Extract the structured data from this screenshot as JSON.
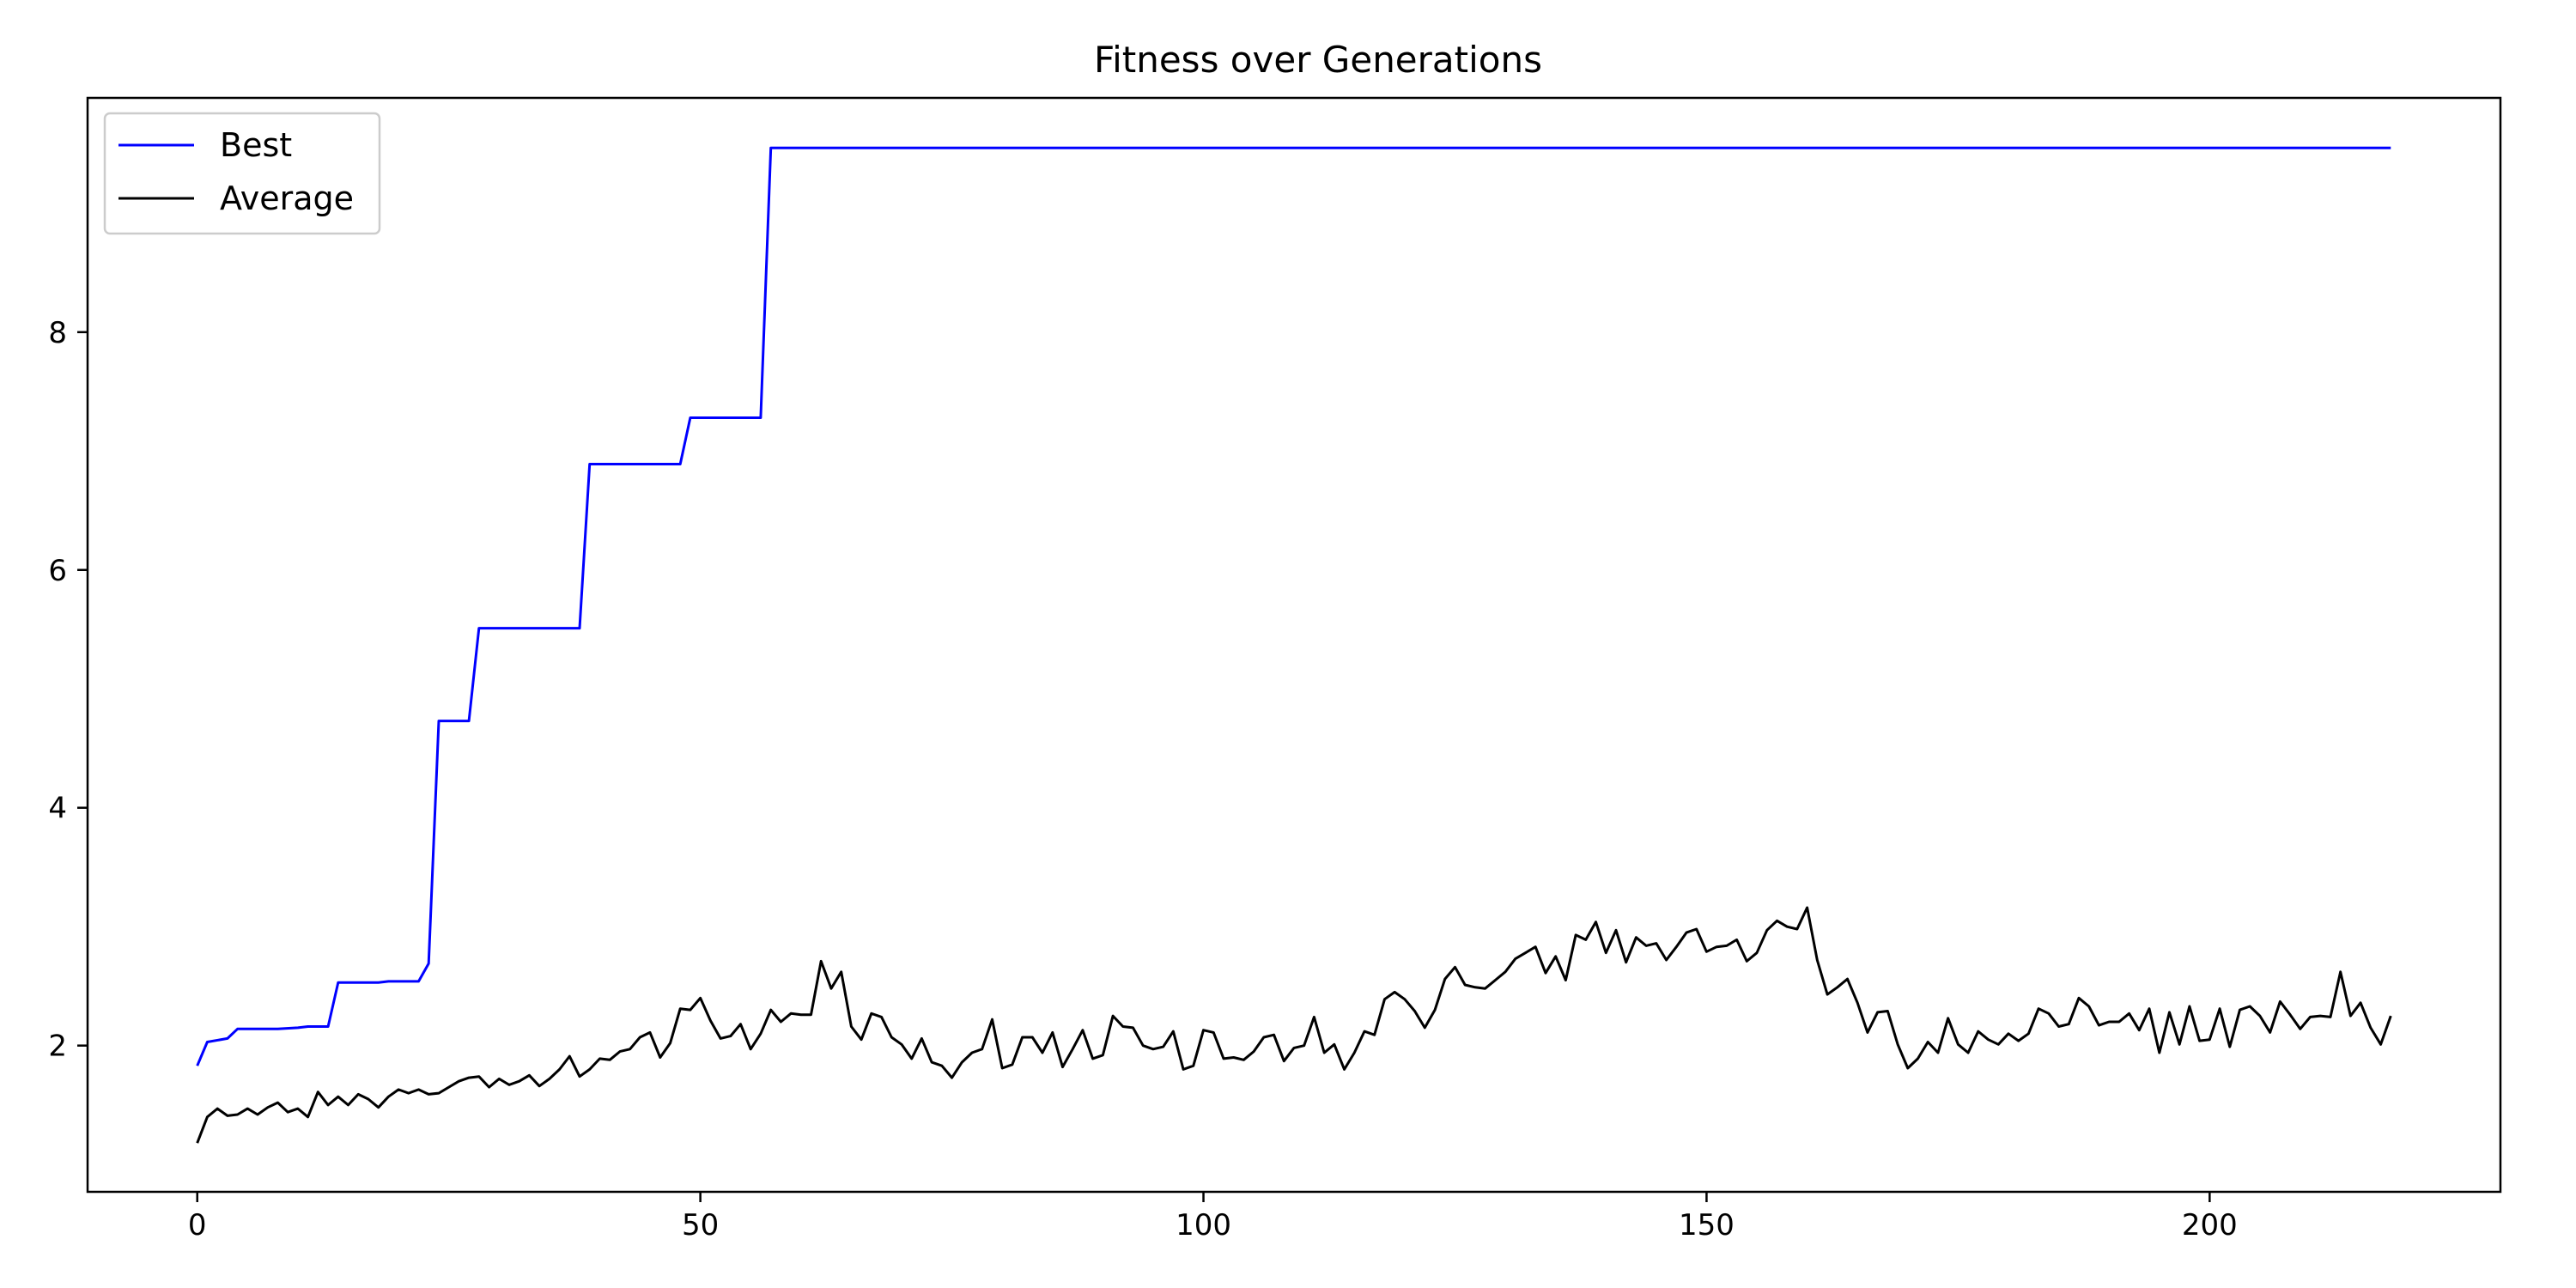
{
  "chart_data": {
    "type": "line",
    "title": "Fitness over Generations",
    "xlabel": "",
    "ylabel": "",
    "xlim": [
      -10.9,
      228.9
    ],
    "ylim": [
      0.77,
      9.97
    ],
    "xticks": [
      0,
      50,
      100,
      150,
      200
    ],
    "yticks": [
      2,
      4,
      6,
      8
    ],
    "grid": false,
    "legend_position": "upper-left",
    "series": [
      {
        "name": "Best",
        "color": "#0000ff",
        "x": [
          0,
          1,
          3,
          4,
          8,
          10,
          11,
          13,
          14,
          18,
          19,
          22,
          23,
          24,
          27,
          28,
          38,
          39,
          48,
          49,
          56,
          57,
          218
        ],
        "y": [
          1.83,
          2.03,
          2.06,
          2.14,
          2.14,
          2.15,
          2.16,
          2.16,
          2.53,
          2.53,
          2.54,
          2.54,
          2.69,
          4.73,
          4.73,
          5.51,
          5.51,
          6.89,
          6.89,
          7.28,
          7.28,
          9.55,
          9.55
        ]
      },
      {
        "name": "Average",
        "color": "#000000",
        "x": [
          0,
          1,
          2,
          3,
          4,
          5,
          6,
          7,
          8,
          9,
          10,
          11,
          12,
          13,
          14,
          15,
          16,
          17,
          18,
          19,
          20,
          21,
          22,
          23,
          24,
          25,
          26,
          27,
          28,
          29,
          30,
          31,
          32,
          33,
          34,
          35,
          36,
          37,
          38,
          39,
          40,
          41,
          42,
          43,
          44,
          45,
          46,
          47,
          48,
          49,
          50,
          51,
          52,
          53,
          54,
          55,
          56,
          57,
          58,
          59,
          60,
          61,
          62,
          63,
          64,
          65,
          66,
          67,
          68,
          69,
          70,
          71,
          72,
          73,
          74,
          75,
          76,
          77,
          78,
          79,
          80,
          81,
          82,
          83,
          84,
          85,
          86,
          87,
          88,
          89,
          90,
          91,
          92,
          93,
          94,
          95,
          96,
          97,
          98,
          99,
          100,
          101,
          102,
          103,
          104,
          105,
          106,
          107,
          108,
          109,
          110,
          111,
          112,
          113,
          114,
          115,
          116,
          117,
          118,
          119,
          120,
          121,
          122,
          123,
          124,
          125,
          126,
          127,
          128,
          129,
          130,
          131,
          132,
          133,
          134,
          135,
          136,
          137,
          138,
          139,
          140,
          141,
          142,
          143,
          144,
          145,
          146,
          147,
          148,
          149,
          150,
          151,
          152,
          153,
          154,
          155,
          156,
          157,
          158,
          159,
          160,
          161,
          162,
          163,
          164,
          165,
          166,
          167,
          168,
          169,
          170,
          171,
          172,
          173,
          174,
          175,
          176,
          177,
          178,
          179,
          180,
          181,
          182,
          183,
          184,
          185,
          186,
          187,
          188,
          189,
          190,
          191,
          192,
          193,
          194,
          195,
          196,
          197,
          198,
          199,
          200,
          201,
          202,
          203,
          204,
          205,
          206,
          207,
          208,
          209,
          210,
          211,
          212,
          213,
          214,
          215,
          216,
          217,
          218
        ],
        "y": [
          1.18,
          1.4,
          1.47,
          1.41,
          1.42,
          1.47,
          1.42,
          1.48,
          1.52,
          1.44,
          1.47,
          1.4,
          1.61,
          1.5,
          1.57,
          1.5,
          1.59,
          1.55,
          1.48,
          1.57,
          1.63,
          1.6,
          1.63,
          1.59,
          1.6,
          1.65,
          1.7,
          1.73,
          1.74,
          1.65,
          1.72,
          1.67,
          1.7,
          1.75,
          1.66,
          1.72,
          1.8,
          1.91,
          1.74,
          1.8,
          1.89,
          1.88,
          1.95,
          1.97,
          2.07,
          2.11,
          1.9,
          2.02,
          2.31,
          2.3,
          2.4,
          2.21,
          2.06,
          2.08,
          2.18,
          1.97,
          2.1,
          2.3,
          2.2,
          2.27,
          2.26,
          2.26,
          2.71,
          2.48,
          2.62,
          2.16,
          2.05,
          2.27,
          2.24,
          2.07,
          2.01,
          1.89,
          2.06,
          1.86,
          1.83,
          1.73,
          1.86,
          1.94,
          1.97,
          2.22,
          1.81,
          1.84,
          2.07,
          2.07,
          1.94,
          2.11,
          1.82,
          1.97,
          2.13,
          1.89,
          1.92,
          2.25,
          2.16,
          2.15,
          2.0,
          1.97,
          1.99,
          2.12,
          1.8,
          1.83,
          2.13,
          2.11,
          1.89,
          1.9,
          1.88,
          1.95,
          2.07,
          2.09,
          1.87,
          1.98,
          2.0,
          2.24,
          1.94,
          2.01,
          1.8,
          1.94,
          2.12,
          2.09,
          2.39,
          2.45,
          2.39,
          2.29,
          2.15,
          2.3,
          2.56,
          2.66,
          2.51,
          2.49,
          2.48,
          2.55,
          2.62,
          2.73,
          2.78,
          2.83,
          2.61,
          2.75,
          2.55,
          2.93,
          2.89,
          3.04,
          2.78,
          2.97,
          2.7,
          2.91,
          2.84,
          2.86,
          2.72,
          2.83,
          2.95,
          2.98,
          2.79,
          2.83,
          2.84,
          2.89,
          2.71,
          2.78,
          2.97,
          3.05,
          3.0,
          2.98,
          3.16,
          2.72,
          2.43,
          2.49,
          2.56,
          2.36,
          2.11,
          2.28,
          2.29,
          2.01,
          1.81,
          1.89,
          2.03,
          1.94,
          2.23,
          2.01,
          1.94,
          2.12,
          2.05,
          2.01,
          2.1,
          2.04,
          2.1,
          2.31,
          2.27,
          2.16,
          2.18,
          2.4,
          2.33,
          2.17,
          2.2,
          2.2,
          2.27,
          2.13,
          2.31,
          1.94,
          2.28,
          2.01,
          2.33,
          2.04,
          2.05,
          2.31,
          1.99,
          2.3,
          2.33,
          2.25,
          2.11,
          2.37,
          2.26,
          2.14,
          2.24,
          2.25,
          2.24,
          2.62,
          2.25,
          2.36,
          2.15,
          2.01,
          2.25
        ]
      }
    ]
  }
}
